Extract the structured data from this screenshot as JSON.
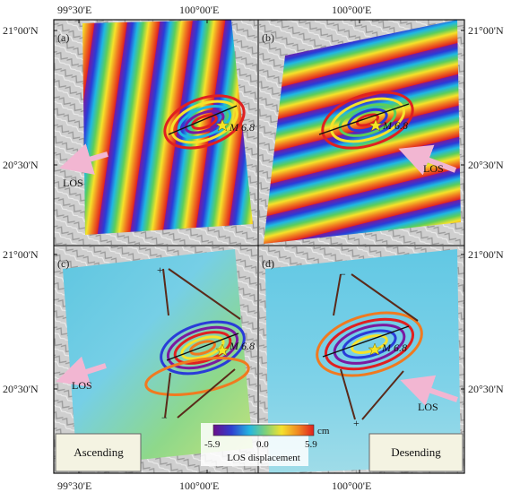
{
  "top_axis": {
    "ticks": [
      "99°30'E",
      "100°00'E",
      "100°00'E"
    ]
  },
  "bottom_axis": {
    "ticks": [
      "99°30'E",
      "100°00'E",
      "100°00'E"
    ]
  },
  "left_axis": {
    "ticks": [
      "21°00'N",
      "20°30'N",
      "21°00'N",
      "20°30'N"
    ]
  },
  "right_axis": {
    "ticks": [
      "21°00'N",
      "20°30'N",
      "21°00'N",
      "20°30'N"
    ]
  },
  "panels": [
    {
      "label": "(a)",
      "magnitude": "M 6.8",
      "los_label": "LOS"
    },
    {
      "label": "(b)",
      "magnitude": "M 6.8",
      "los_label": "LOS"
    },
    {
      "label": "(c)",
      "magnitude": "M 6.8",
      "los_label": "LOS",
      "plus": "+",
      "minus": "−"
    },
    {
      "label": "(d)",
      "magnitude": "M 6.8",
      "los_label": "LOS",
      "plus": "+",
      "minus": "−"
    }
  ],
  "colorbar": {
    "min_label": "-5.9",
    "mid_label": "0.0",
    "max_label": "5.9",
    "unit": "cm",
    "title": "LOS displacement",
    "colors": [
      "#6a0f8a",
      "#2f3fd0",
      "#24b6e0",
      "#7ed07a",
      "#f4e12e",
      "#f08a22",
      "#e0201e"
    ]
  },
  "boxes": {
    "ascending": "Ascending",
    "descending": "Desending"
  },
  "colors": {
    "epicenter_star": "#f4e526",
    "fault_line": "#111111",
    "los_arrow": "#f2b6d2",
    "profile_line": "#5a2a1a"
  }
}
